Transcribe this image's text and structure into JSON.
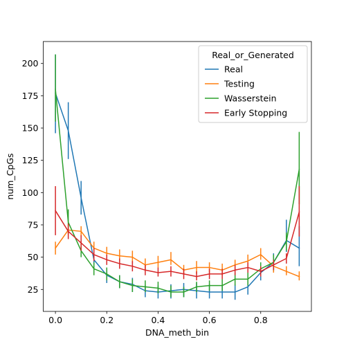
{
  "chart_data": {
    "type": "line",
    "xlabel": "DNA_meth_bin",
    "ylabel": "num_CpGs",
    "xlim": [
      -0.0475,
      0.9975
    ],
    "ylim": [
      8,
      217
    ],
    "xticks": [
      0.0,
      0.2,
      0.4,
      0.6,
      0.8
    ],
    "xtick_labels": [
      "0.0",
      "0.2",
      "0.4",
      "0.6",
      "0.8"
    ],
    "yticks": [
      25,
      50,
      75,
      100,
      125,
      150,
      175,
      200
    ],
    "ytick_labels": [
      "25",
      "50",
      "75",
      "100",
      "125",
      "150",
      "175",
      "200"
    ],
    "grid": false,
    "legend": {
      "title": "Real_or_Generated",
      "placement": "top-right"
    },
    "x": [
      0.0,
      0.05,
      0.1,
      0.15,
      0.2,
      0.25,
      0.3,
      0.35,
      0.4,
      0.45,
      0.5,
      0.55,
      0.6,
      0.65,
      0.7,
      0.75,
      0.8,
      0.85,
      0.9,
      0.95
    ],
    "series": [
      {
        "name": "Real",
        "color": "#1f77b4",
        "values": [
          177,
          148,
          96,
          48,
          36,
          31,
          29,
          24,
          23,
          24,
          25,
          24,
          23,
          23,
          23,
          27,
          38,
          46,
          63,
          57
        ],
        "err_low": [
          146,
          126,
          83,
          40,
          30,
          26,
          23,
          19,
          18,
          18,
          19,
          18,
          18,
          18,
          17,
          21,
          32,
          39,
          54,
          43
        ],
        "err_high": [
          207,
          170,
          109,
          55,
          41,
          36,
          34,
          28,
          28,
          29,
          30,
          30,
          29,
          28,
          29,
          32,
          44,
          53,
          79,
          74
        ]
      },
      {
        "name": "Testing",
        "color": "#ff7f0e",
        "values": [
          57,
          71,
          70,
          57,
          53,
          51,
          50,
          44,
          46,
          48,
          40,
          42,
          42,
          40,
          44,
          47,
          52,
          43,
          39,
          35
        ],
        "err_low": [
          52,
          67,
          66,
          52,
          49,
          47,
          45,
          40,
          42,
          44,
          37,
          37,
          38,
          36,
          39,
          43,
          48,
          38,
          36,
          32
        ],
        "err_high": [
          62,
          75,
          74,
          62,
          58,
          56,
          55,
          49,
          51,
          54,
          44,
          47,
          46,
          45,
          48,
          52,
          57,
          48,
          43,
          39
        ]
      },
      {
        "name": "Wasserstein",
        "color": "#2ca02c",
        "values": [
          180,
          77,
          55,
          41,
          37,
          31,
          28,
          27,
          26,
          23,
          23,
          27,
          28,
          28,
          33,
          33,
          41,
          46,
          62,
          118
        ],
        "err_low": [
          155,
          68,
          50,
          36,
          32,
          26,
          23,
          23,
          22,
          19,
          19,
          23,
          24,
          24,
          28,
          28,
          36,
          40,
          55,
          91
        ],
        "err_high": [
          207,
          87,
          61,
          46,
          42,
          36,
          33,
          32,
          31,
          28,
          27,
          31,
          32,
          33,
          38,
          38,
          46,
          52,
          69,
          147
        ]
      },
      {
        "name": "Early Stopping",
        "color": "#d62728",
        "values": [
          86,
          70,
          61,
          52,
          48,
          45,
          43,
          40,
          38,
          39,
          37,
          35,
          37,
          37,
          40,
          42,
          39,
          44,
          49,
          85
        ],
        "err_low": [
          67,
          64,
          55,
          47,
          44,
          41,
          39,
          36,
          35,
          35,
          33,
          32,
          33,
          33,
          36,
          38,
          35,
          40,
          45,
          66
        ],
        "err_high": [
          105,
          76,
          67,
          57,
          52,
          49,
          47,
          44,
          42,
          43,
          41,
          39,
          41,
          41,
          44,
          46,
          43,
          48,
          53,
          105
        ]
      }
    ]
  }
}
